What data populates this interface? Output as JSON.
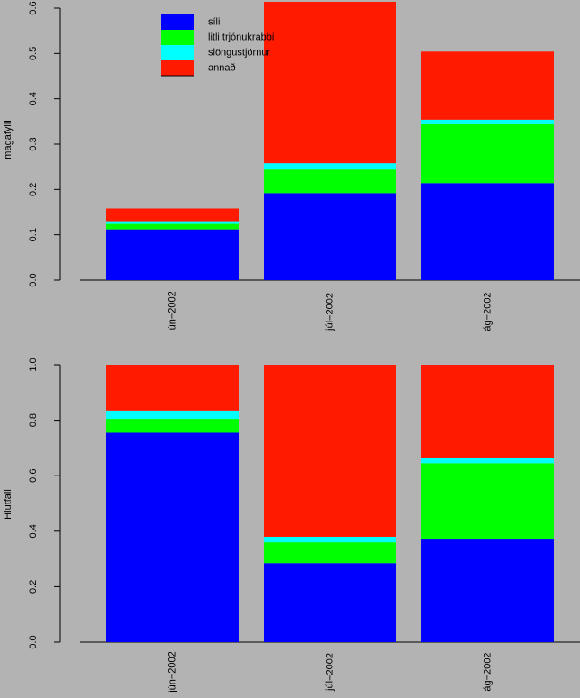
{
  "chart_data": [
    {
      "type": "bar",
      "stacked": true,
      "ylabel": "magafylli",
      "ylim": [
        0,
        0.6
      ],
      "yticks": [
        "0.0",
        "0.1",
        "0.2",
        "0.3",
        "0.4",
        "0.5",
        "0.6"
      ],
      "categories": [
        "jún−2002",
        "júl−2002",
        "ág−2002"
      ],
      "series": [
        {
          "name": "síli",
          "color": "#0000ff",
          "values": [
            0.112,
            0.192,
            0.214
          ]
        },
        {
          "name": "litli trjónukrabbi",
          "color": "#00ff00",
          "values": [
            0.012,
            0.052,
            0.13
          ]
        },
        {
          "name": "slöngustjörnur",
          "color": "#00ffff",
          "values": [
            0.006,
            0.014,
            0.01
          ]
        },
        {
          "name": "annað",
          "color": "#ff1a00",
          "values": [
            0.028,
            0.356,
            0.15
          ]
        }
      ],
      "legend": "top-left",
      "grid": false
    },
    {
      "type": "bar",
      "stacked": true,
      "ylabel": "Hlutfall",
      "ylim": [
        0,
        1.0
      ],
      "yticks": [
        "0.0",
        "0.2",
        "0.4",
        "0.6",
        "0.8",
        "1.0"
      ],
      "categories": [
        "jún−2002",
        "júl−2002",
        "ág−2002"
      ],
      "series": [
        {
          "name": "síli",
          "color": "#0000ff",
          "values": [
            0.755,
            0.285,
            0.37
          ]
        },
        {
          "name": "litli trjónukrabbi",
          "color": "#00ff00",
          "values": [
            0.05,
            0.075,
            0.275
          ]
        },
        {
          "name": "slöngustjörnur",
          "color": "#00ffff",
          "values": [
            0.03,
            0.02,
            0.02
          ]
        },
        {
          "name": "annað",
          "color": "#ff1a00",
          "values": [
            0.165,
            0.62,
            0.335
          ]
        }
      ],
      "grid": false
    }
  ]
}
